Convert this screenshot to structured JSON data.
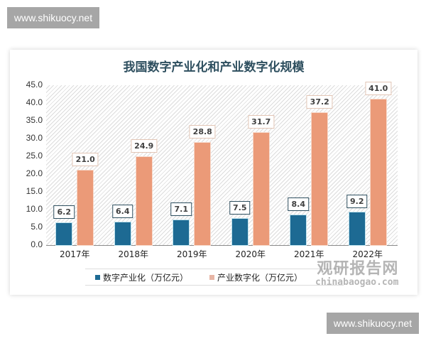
{
  "watermarks": {
    "top_left": "www.shikuocy.net",
    "bottom_right": "www.shikuocy.net",
    "source_cn": "观研报告网",
    "source_en": "chinabaogao.com"
  },
  "colors": {
    "series1": "#1d6a93",
    "series2": "#eb9a78",
    "title": "#2e4f5f"
  },
  "chart_data": {
    "type": "bar",
    "title": "我国数字产业化和产业数字化规模",
    "xlabel": "",
    "ylabel": "",
    "ylim": [
      0,
      45
    ],
    "yticks": [
      "45.0",
      "40.0",
      "35.0",
      "30.0",
      "25.0",
      "20.0",
      "15.0",
      "10.0",
      "5.0",
      "0.0"
    ],
    "categories": [
      "2017年",
      "2018年",
      "2019年",
      "2020年",
      "2021年",
      "2022年"
    ],
    "series": [
      {
        "name": "数字产业化（万亿元）",
        "values": [
          6.2,
          6.4,
          7.1,
          7.5,
          8.4,
          9.2
        ],
        "labels": [
          "6.2",
          "6.4",
          "7.1",
          "7.5",
          "8.4",
          "9.2"
        ]
      },
      {
        "name": "产业数字化（万亿元）",
        "values": [
          21.0,
          24.9,
          28.8,
          31.7,
          37.2,
          41.0
        ],
        "labels": [
          "21.0",
          "24.9",
          "28.8",
          "31.7",
          "37.2",
          "41.0"
        ]
      }
    ],
    "grid": false,
    "legend_position": "bottom",
    "data_labels": true
  }
}
